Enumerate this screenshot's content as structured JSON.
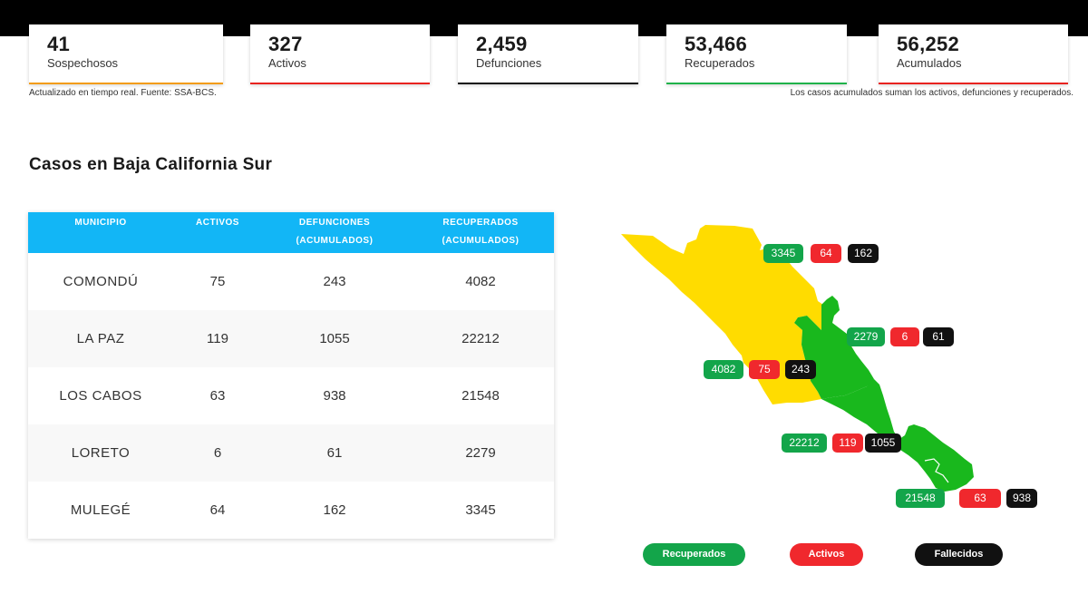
{
  "stats": [
    {
      "value": "41",
      "label": "Sospechosos",
      "color": "#f39c12"
    },
    {
      "value": "327",
      "label": "Activos",
      "color": "#e8231f"
    },
    {
      "value": "2,459",
      "label": "Defunciones",
      "color": "#111111"
    },
    {
      "value": "53,466",
      "label": "Recuperados",
      "color": "#1fb24a"
    },
    {
      "value": "56,252",
      "label": "Acumulados",
      "color": "#e8231f"
    }
  ],
  "notes": {
    "left": "Actualizado en tiempo real. Fuente: SSA-BCS.",
    "right": "Los casos acumulados suman los activos, defunciones y recuperados."
  },
  "section_title": "Casos en Baja California Sur",
  "table": {
    "headers": [
      {
        "line1": "MUNICIPIO",
        "line2": ""
      },
      {
        "line1": "ACTIVOS",
        "line2": ""
      },
      {
        "line1": "DEFUNCIONES",
        "line2": "(ACUMULADOS)"
      },
      {
        "line1": "RECUPERADOS",
        "line2": "(ACUMULADOS)"
      }
    ],
    "rows": [
      {
        "municipio": "COMONDÚ",
        "activos": "75",
        "defunciones": "243",
        "recuperados": "4082"
      },
      {
        "municipio": "LA PAZ",
        "activos": "119",
        "defunciones": "1055",
        "recuperados": "22212"
      },
      {
        "municipio": "LOS CABOS",
        "activos": "63",
        "defunciones": "938",
        "recuperados": "21548"
      },
      {
        "municipio": "LORETO",
        "activos": "6",
        "defunciones": "61",
        "recuperados": "2279"
      },
      {
        "municipio": "MULEGÉ",
        "activos": "64",
        "defunciones": "162",
        "recuperados": "3345"
      }
    ]
  },
  "map_badges": [
    {
      "recuperados": "3345",
      "activos": "64",
      "fallecidos": "162"
    },
    {
      "recuperados": "2279",
      "activos": "6",
      "fallecidos": "61"
    },
    {
      "recuperados": "4082",
      "activos": "75",
      "fallecidos": "243"
    },
    {
      "recuperados": "22212",
      "activos": "119",
      "fallecidos": "1055"
    },
    {
      "recuperados": "21548",
      "activos": "63",
      "fallecidos": "938"
    }
  ],
  "legend": {
    "recuperados": "Recuperados",
    "activos": "Activos",
    "fallecidos": "Fallecidos"
  },
  "colors": {
    "header_blue": "#12b6f6",
    "map_yellow": "#ffdc00",
    "map_green": "#19b81d",
    "green": "#13a54a",
    "red": "#f0282d",
    "black": "#111111"
  }
}
